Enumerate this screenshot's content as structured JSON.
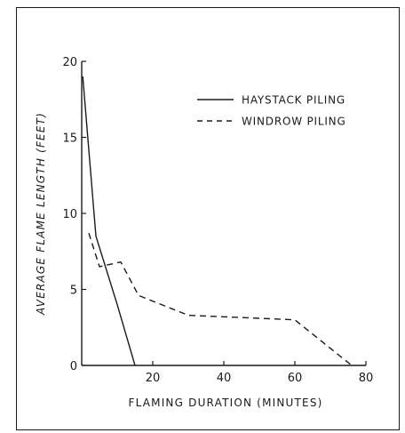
{
  "chart_data": {
    "type": "line",
    "title": "",
    "xlabel": "FLAMING DURATION (MINUTES)",
    "ylabel": "AVERAGE FLAME LENGTH (FEET)",
    "xlim": [
      0,
      80
    ],
    "ylim": [
      0,
      20
    ],
    "x_ticks": [
      20,
      40,
      60,
      80
    ],
    "y_ticks": [
      0,
      5,
      10,
      15,
      20
    ],
    "grid": false,
    "legend_position": "top-right",
    "series": [
      {
        "name": "HAYSTACK PILING",
        "style": "solid",
        "x": [
          0.3,
          4,
          10,
          15
        ],
        "y": [
          19,
          8.5,
          4,
          0
        ]
      },
      {
        "name": "WINDROW PILING",
        "style": "dashed",
        "x": [
          2,
          5,
          11,
          16,
          30,
          60,
          76
        ],
        "y": [
          8.7,
          6.5,
          6.8,
          4.6,
          3.3,
          3.0,
          0
        ]
      }
    ]
  }
}
